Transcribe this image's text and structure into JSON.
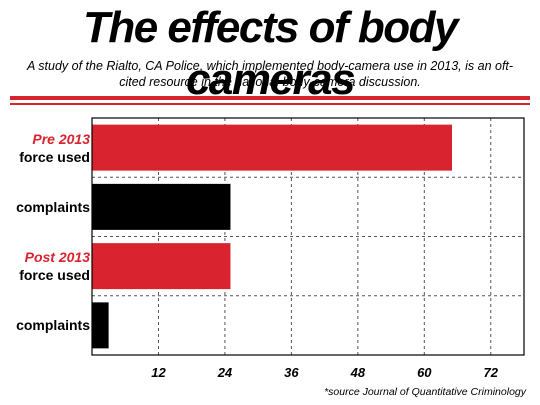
{
  "header": {
    "title": "The effects of body cameras",
    "subtitle": "A study of the Rialto, CA Police, which implemented body-camera use in 2013, is an oft-cited resource in the national body-camera discussion."
  },
  "source": "*source Journal of Quantitative Criminology",
  "colors": {
    "accent": "#d9232e",
    "complaints": "#000000"
  },
  "chart_data": {
    "type": "bar",
    "orientation": "horizontal",
    "categories": [
      {
        "era": "Pre 2013",
        "label": "force used"
      },
      {
        "era": "",
        "label": "complaints"
      },
      {
        "era": "Post 2013",
        "label": "force used"
      },
      {
        "era": "",
        "label": "complaints"
      }
    ],
    "values": [
      65,
      25,
      25,
      3
    ],
    "bar_colors": [
      "#d9232e",
      "#000000",
      "#d9232e",
      "#000000"
    ],
    "xticks": [
      12,
      24,
      36,
      48,
      60,
      72
    ],
    "xlim": [
      0,
      78
    ],
    "grid": true,
    "title": "",
    "xlabel": "",
    "ylabel": ""
  }
}
